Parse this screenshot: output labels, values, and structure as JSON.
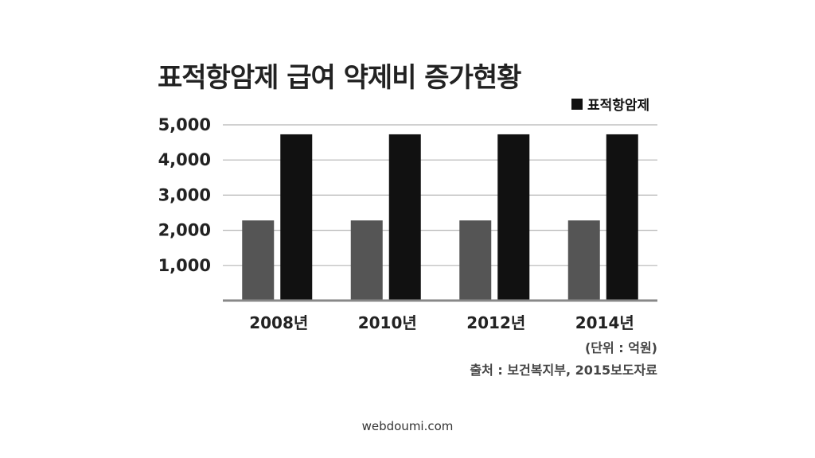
{
  "chart_data": {
    "type": "bar",
    "title": "표적항암제 급여 약제비 증가현황",
    "categories": [
      "2008년",
      "2010년",
      "2012년",
      "2014년"
    ],
    "series": [
      {
        "values": [
          2280,
          2280,
          2280,
          2280
        ],
        "color": "#555555"
      },
      {
        "name": "표적항암제",
        "values": [
          4730,
          4730,
          4730,
          4730
        ],
        "color": "#111111"
      }
    ],
    "y_ticks": [
      "1,000",
      "2,000",
      "3,000",
      "4,000",
      "5,000"
    ],
    "ylim": [
      0,
      5000
    ],
    "grid": true,
    "legend_position": "top-right",
    "unit_note": "(단위 : 억원)",
    "source_note": "출처 : 보건복지부, 2015보도자료"
  },
  "footer": {
    "watermark": "webdoumi.com"
  }
}
